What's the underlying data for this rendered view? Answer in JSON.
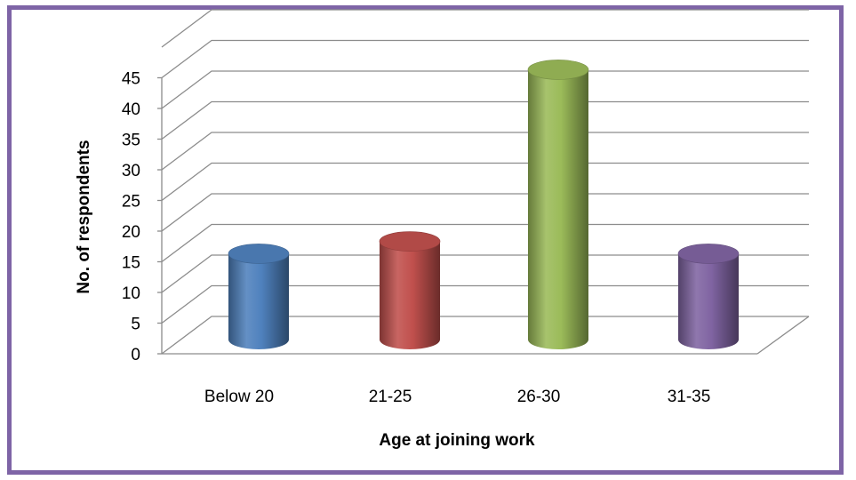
{
  "chart_data": {
    "type": "bar",
    "style": "3d-cylinder",
    "title": "",
    "xlabel": "Age at joining work",
    "ylabel": "No. of respondents",
    "categories": [
      "Below 20",
      "21-25",
      "26-30",
      "31-35"
    ],
    "values": [
      14,
      16,
      44,
      14
    ],
    "bar_colors": [
      "#4f81bd",
      "#c0504d",
      "#9bbb59",
      "#8064a2"
    ],
    "ylim": [
      0,
      45
    ],
    "yticks": [
      0,
      5,
      10,
      15,
      20,
      25,
      30,
      35,
      40,
      45
    ],
    "grid": true,
    "legend": "none"
  },
  "frame_border_color": "#7e64a6"
}
